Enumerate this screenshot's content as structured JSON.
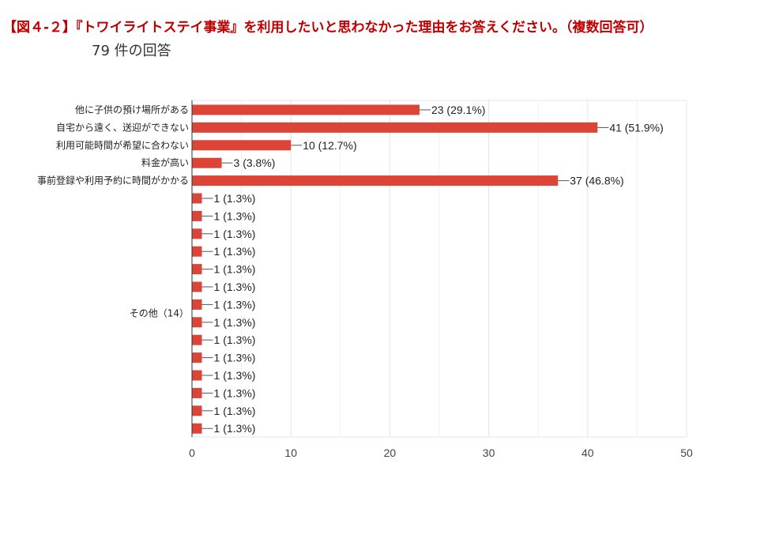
{
  "title": "【図４-２】『トワイライトステイ事業』を利用したいと思わなかった理由をお答えください。（複数回答可）",
  "subtitle": "79 件の回答",
  "chart_data": {
    "type": "bar",
    "orientation": "horizontal",
    "bar_color": "#db4437",
    "grid": true,
    "xlim": [
      0,
      50
    ],
    "x_ticks": [
      "0",
      "10",
      "20",
      "30",
      "40",
      "50"
    ],
    "categories": [
      "他に子供の預け場所がある",
      "自宅から遠く、送迎ができない",
      "利用可能時間が希望に合わない",
      "料金が高い",
      "事前登録や利用予約に時間がかかる",
      "",
      "",
      "",
      "",
      "",
      "",
      "",
      "",
      "",
      "",
      "",
      "",
      "",
      ""
    ],
    "values": [
      23,
      41,
      10,
      3,
      37,
      1,
      1,
      1,
      1,
      1,
      1,
      1,
      1,
      1,
      1,
      1,
      1,
      1,
      1
    ],
    "value_labels": [
      "23 (29.1%)",
      "41 (51.9%)",
      "10 (12.7%)",
      "3 (3.8%)",
      "37 (46.8%)",
      "1 (1.3%)",
      "1 (1.3%)",
      "1 (1.3%)",
      "1 (1.3%)",
      "1 (1.3%)",
      "1 (1.3%)",
      "1 (1.3%)",
      "1 (1.3%)",
      "1 (1.3%)",
      "1 (1.3%)",
      "1 (1.3%)",
      "1 (1.3%)",
      "1 (1.3%)",
      "1 (1.3%)"
    ],
    "group_label": "その他（14）"
  }
}
